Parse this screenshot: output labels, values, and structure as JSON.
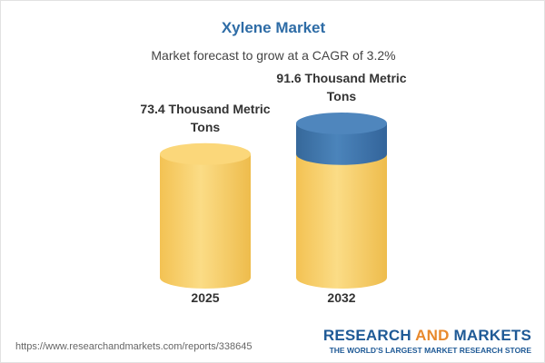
{
  "chart_data": {
    "type": "bar",
    "title": "Xylene Market",
    "subtitle": "Market forecast to grow at a CAGR of 3.2%",
    "categories": [
      "2025",
      "2032"
    ],
    "values": [
      73.4,
      91.6
    ],
    "value_labels": [
      "73.4 Thousand Metric Tons",
      "91.6 Thousand Metric Tons"
    ],
    "color": "#f5c85a",
    "growth_color": "#3f76aa"
  },
  "footer": {
    "url": "https://www.researchandmarkets.com/reports/338645",
    "brand": [
      "RESEARCH",
      "AND",
      "MARKETS"
    ],
    "tagline": "THE WORLD'S LARGEST MARKET RESEARCH STORE"
  }
}
